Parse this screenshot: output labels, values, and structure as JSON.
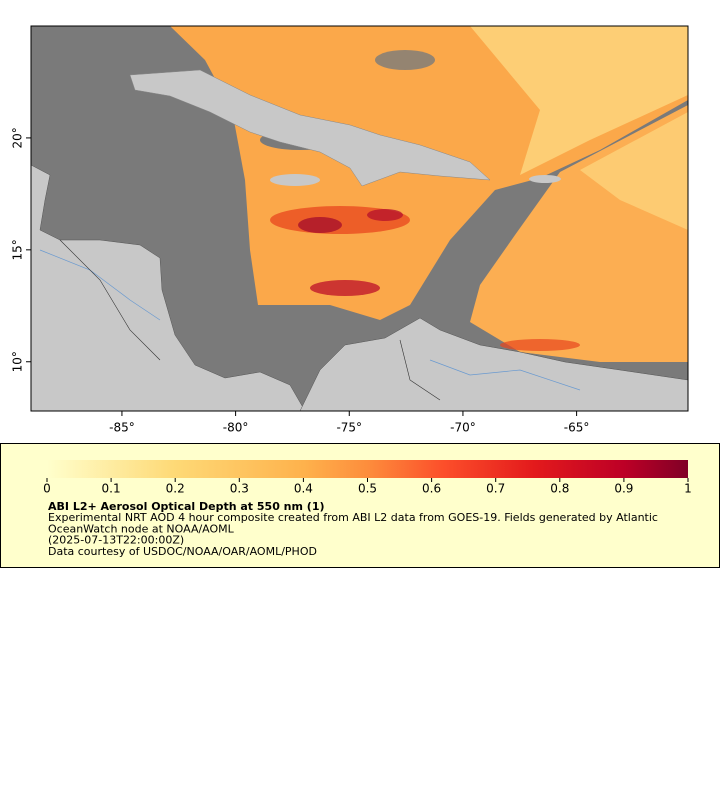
{
  "map": {
    "xlim": [
      -89,
      -60.1
    ],
    "ylim": [
      7.8,
      25
    ],
    "xticks": [
      {
        "value": -85,
        "label": "-85°"
      },
      {
        "value": -80,
        "label": "-80°"
      },
      {
        "value": -75,
        "label": "-75°"
      },
      {
        "value": -70,
        "label": "-70°"
      },
      {
        "value": -65,
        "label": "-65°"
      }
    ],
    "yticks": [
      {
        "value": 10,
        "label": "10°"
      },
      {
        "value": 15,
        "label": "15°"
      },
      {
        "value": 20,
        "label": "20°"
      }
    ]
  },
  "legend": {
    "range": [
      0,
      1
    ],
    "ticks": [
      0,
      0.1,
      0.2,
      0.3,
      0.4,
      0.5,
      0.6,
      0.7,
      0.8,
      0.9,
      1
    ],
    "title": "ABI L2+ Aerosol Optical Depth at 550 nm (1)",
    "lines": [
      "Experimental NRT AOD 4 hour composite created from ABI L2 data from GOES-19. Fields generated by Atlantic",
      "OceanWatch node at NOAA/AOML",
      "(2025-07-13T22:00:00Z)",
      "Data courtesy of USDOC/NOAA/OAR/AOML/PHOD"
    ]
  }
}
